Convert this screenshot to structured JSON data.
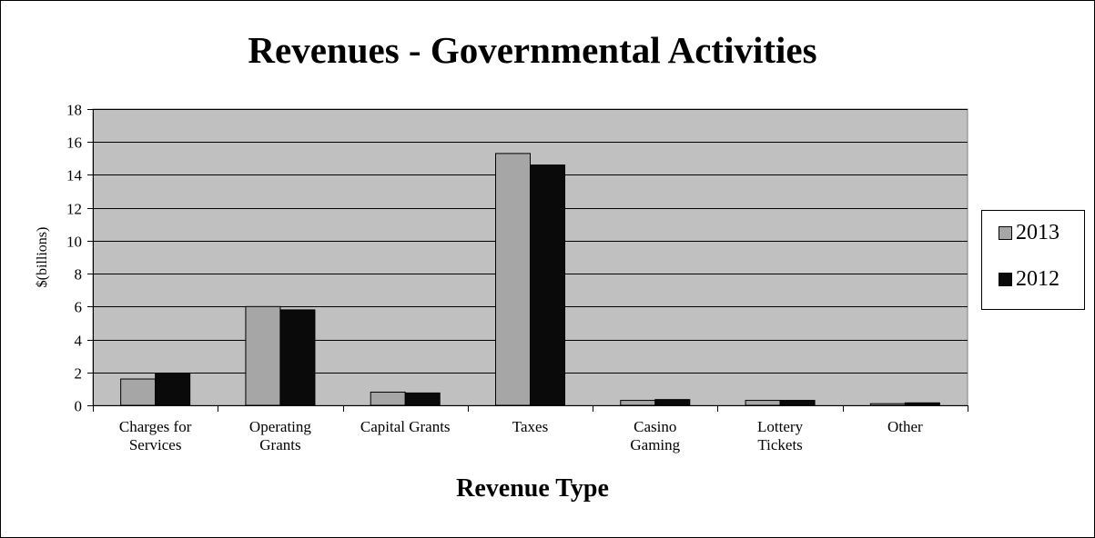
{
  "chart_data": {
    "type": "bar",
    "title": "Revenues - Governmental Activities",
    "xlabel": "Revenue Type",
    "ylabel": "$(billions)",
    "ylim": [
      0,
      18
    ],
    "yticks": [
      0,
      2,
      4,
      6,
      8,
      10,
      12,
      14,
      16,
      18
    ],
    "grid": true,
    "legend_position": "right",
    "categories": [
      [
        "Charges for",
        "Services"
      ],
      [
        "Operating",
        "Grants"
      ],
      [
        "Capital Grants"
      ],
      [
        "Taxes"
      ],
      [
        "Casino",
        "Gaming"
      ],
      [
        "Lottery",
        "Tickets"
      ],
      [
        "Other"
      ]
    ],
    "series": [
      {
        "name": "2013",
        "color": "#a6a6a6",
        "values": [
          1.6,
          6.0,
          0.8,
          15.3,
          0.3,
          0.3,
          0.1
        ]
      },
      {
        "name": "2012",
        "color": "#0a0a0a",
        "values": [
          1.95,
          5.8,
          0.75,
          14.6,
          0.35,
          0.3,
          0.15
        ]
      }
    ],
    "plot_background": "#c0c0c0"
  }
}
